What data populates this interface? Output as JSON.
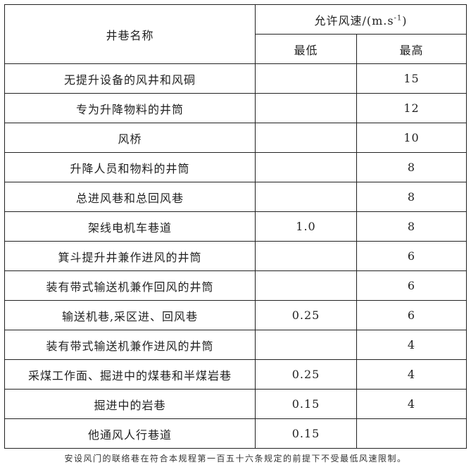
{
  "table": {
    "header": {
      "name_col": "井巷名称",
      "speed_group": "允许风速/(m.s",
      "speed_unit_sup": "-1",
      "speed_group_close": ")",
      "min_col": "最低",
      "max_col": "最高"
    },
    "rows": [
      {
        "name": "无提升设备的风井和风硐",
        "min": "",
        "max": "15"
      },
      {
        "name": "专为升降物料的井筒",
        "min": "",
        "max": "12"
      },
      {
        "name": "风桥",
        "min": "",
        "max": "10"
      },
      {
        "name": "升降人员和物料的井筒",
        "min": "",
        "max": "8"
      },
      {
        "name": "总进风巷和总回风巷",
        "min": "",
        "max": "8"
      },
      {
        "name": "架线电机车巷道",
        "min": "1.0",
        "max": "8"
      },
      {
        "name": "箕斗提升井兼作进风的井筒",
        "min": "",
        "max": "6"
      },
      {
        "name": "装有带式输送机兼作回风的井筒",
        "min": "",
        "max": "6"
      },
      {
        "name": "输送机巷,采区进、回风巷",
        "min": "0.25",
        "max": "6"
      },
      {
        "name": "装有带式输送机兼作进风的井筒",
        "min": "",
        "max": "4"
      },
      {
        "name": "采煤工作面、掘进中的煤巷和半煤岩巷",
        "min": "0.25",
        "max": "4"
      },
      {
        "name": "掘进中的岩巷",
        "min": "0.15",
        "max": "4"
      },
      {
        "name": "他通风人行巷道",
        "min": "0.15",
        "max": ""
      }
    ]
  },
  "footer": "安设风门的联络巷在符合本规程第一百五十六条规定的前提下不受最低风速限制。"
}
